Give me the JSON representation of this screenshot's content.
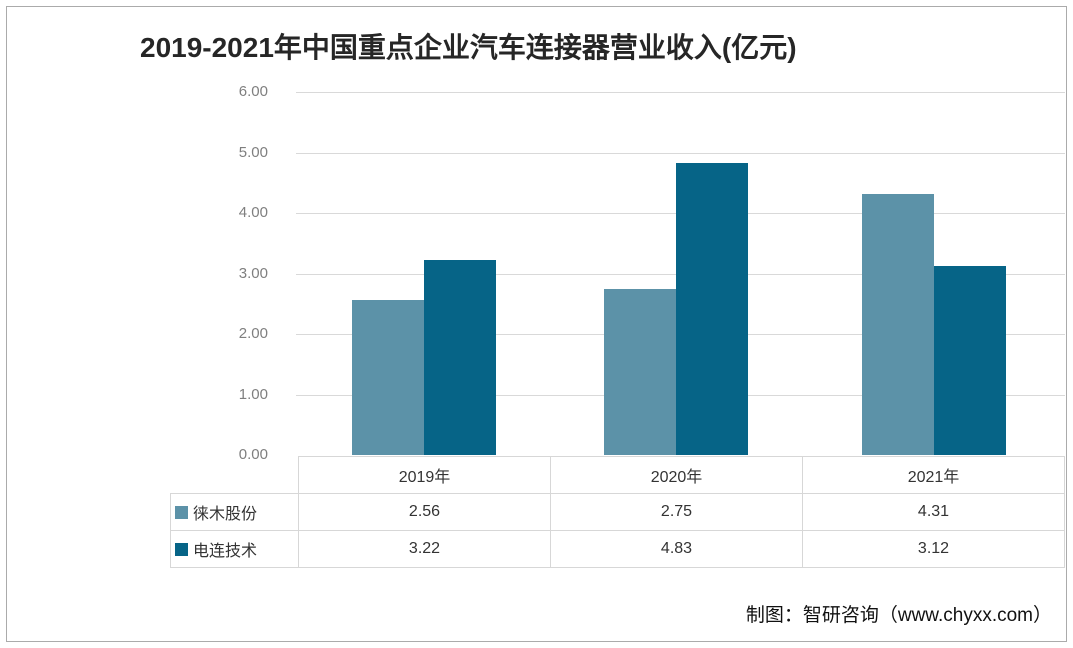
{
  "title": "2019-2021年中国重点企业汽车连接器营业收入(亿元)",
  "footer": "制图：智研咨询（www.chyxx.com）",
  "chart_data": {
    "type": "bar",
    "title": "2019-2021年中国重点企业汽车连接器营业收入(亿元)",
    "categories": [
      "2019年",
      "2020年",
      "2021年"
    ],
    "series": [
      {
        "name": "徕木股份",
        "values": [
          2.56,
          2.75,
          4.31
        ],
        "color": "#5c92a8"
      },
      {
        "name": "电连技术",
        "values": [
          3.22,
          4.83,
          3.12
        ],
        "color": "#066487"
      }
    ],
    "ylabel": "",
    "xlabel": "",
    "ylim": [
      0,
      6
    ],
    "ytick_labels": [
      "0.00",
      "1.00",
      "2.00",
      "3.00",
      "4.00",
      "5.00",
      "6.00"
    ],
    "grid": true,
    "legend_position": "table-left",
    "data_table_shown": true,
    "colors": {
      "gridline": "#d9d9d9",
      "table_border": "#d7d7d7",
      "axis_label": "#7f7f7f",
      "title_text": "#262626",
      "frame_border": "#ababab"
    }
  }
}
